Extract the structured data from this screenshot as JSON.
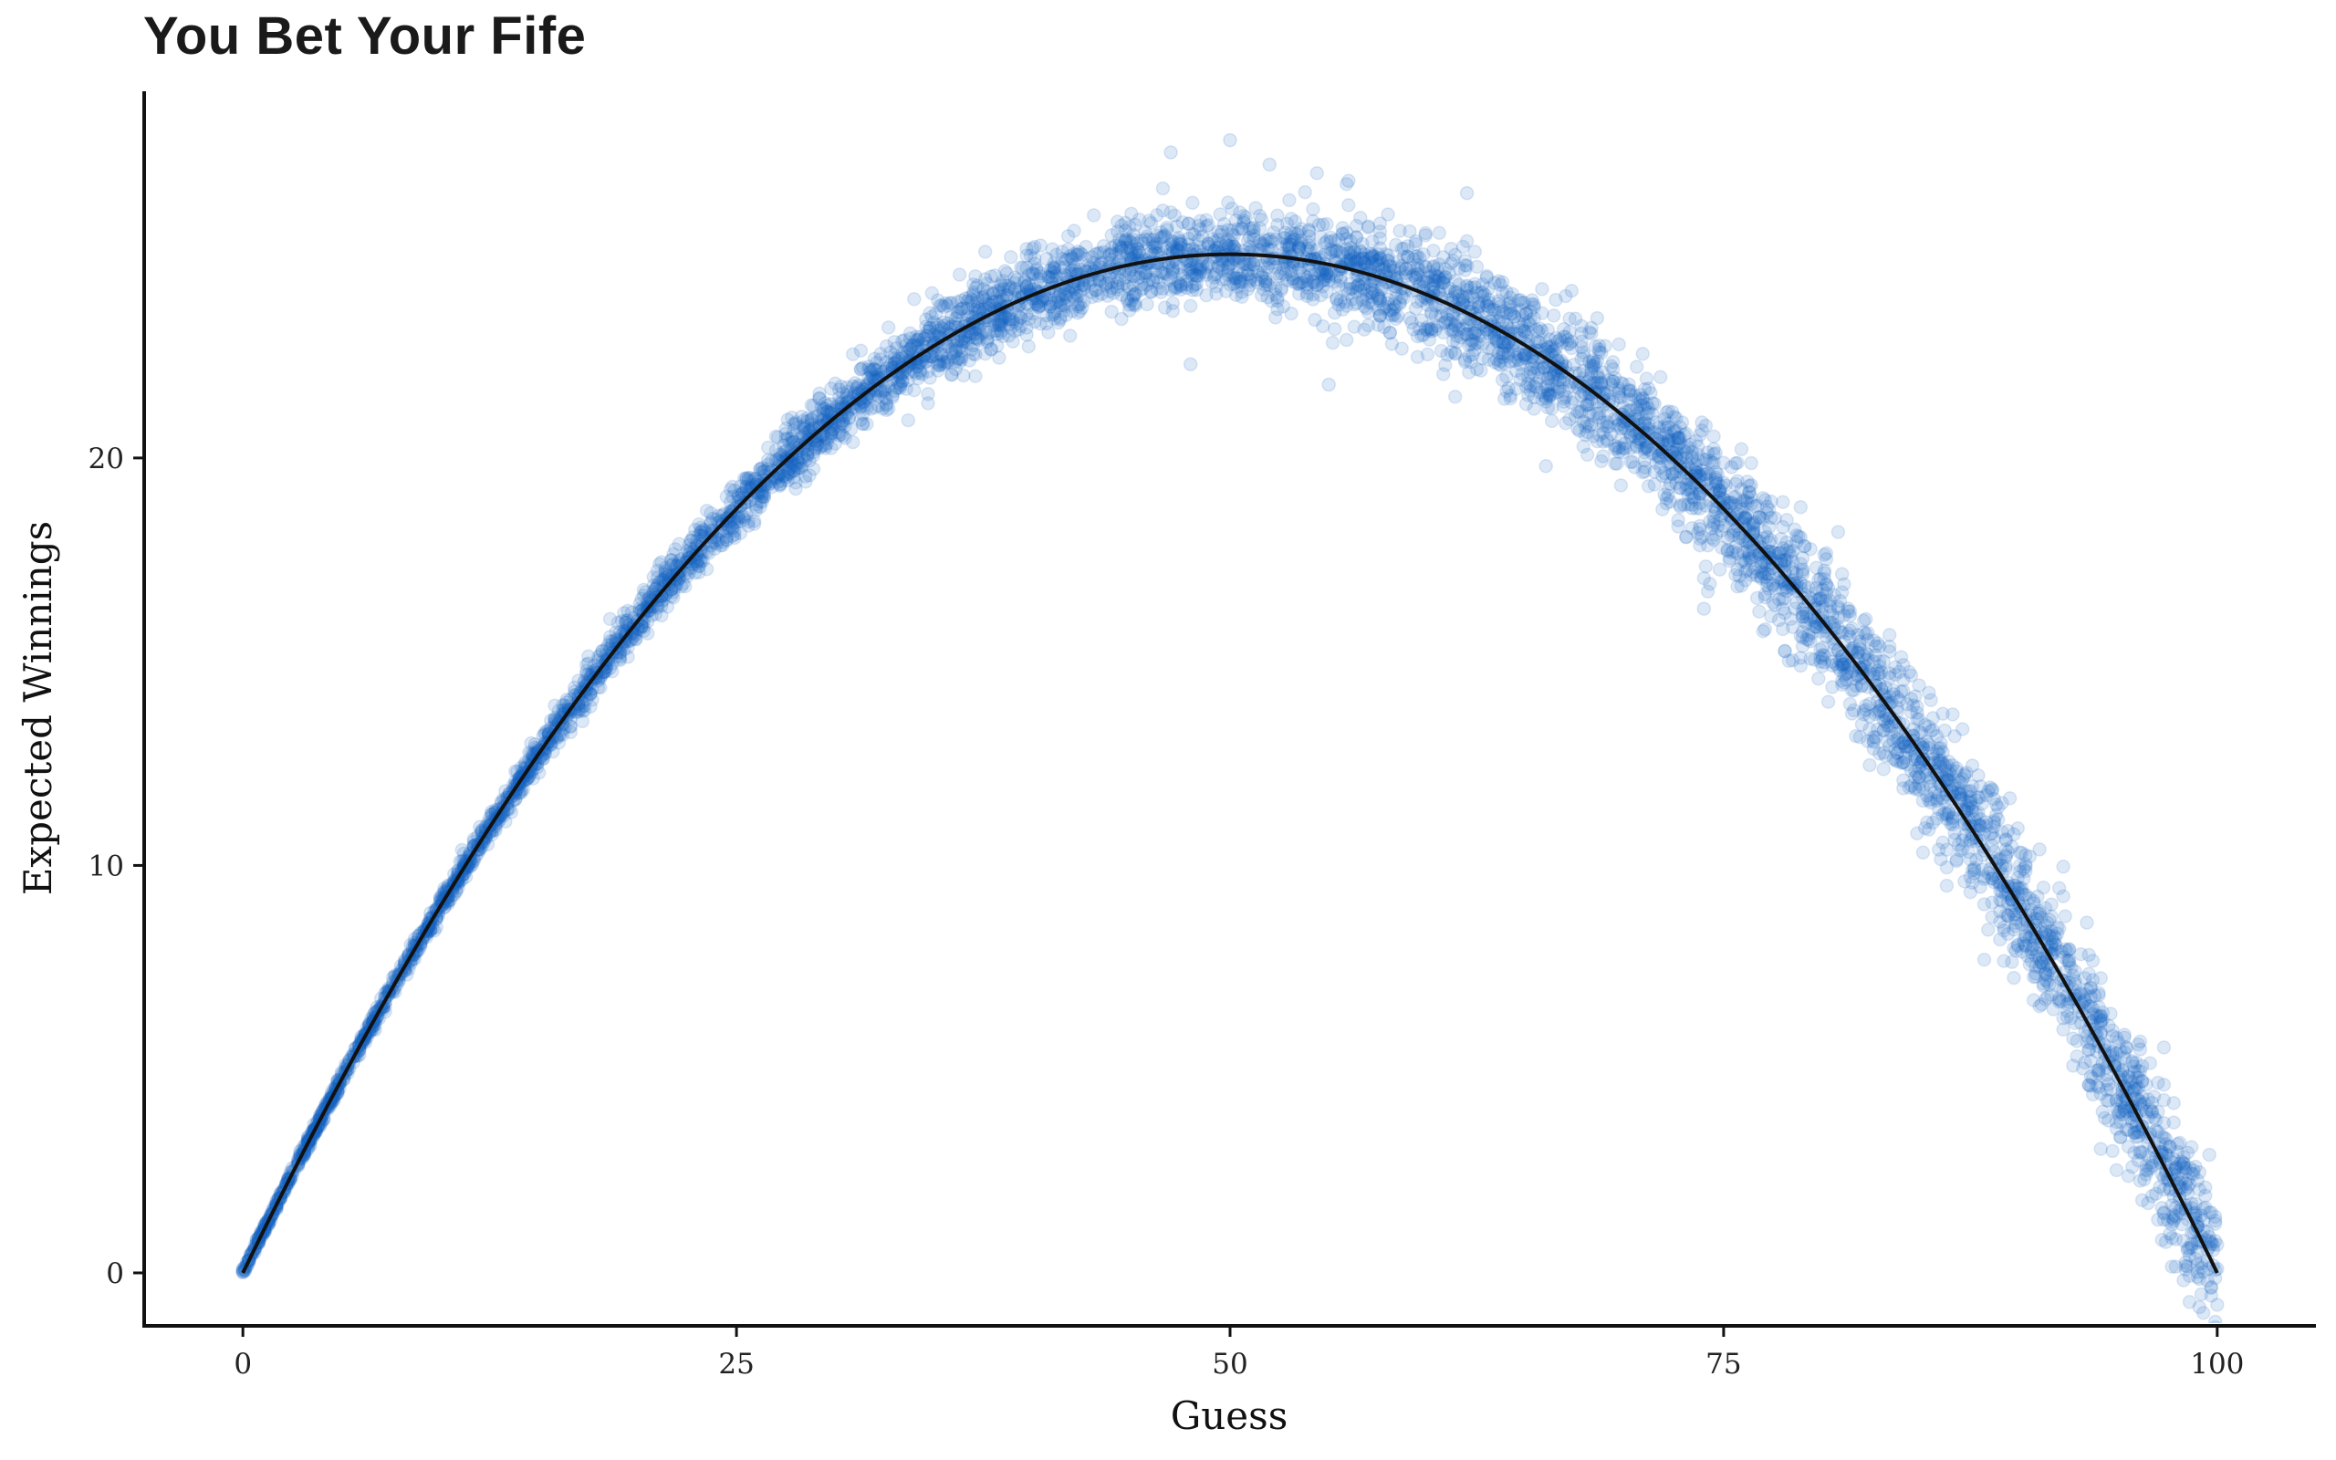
{
  "chart_data": {
    "type": "scatter",
    "title": "You Bet Your Fife",
    "xlabel": "Guess",
    "ylabel": "Expected Winnings",
    "xlim": [
      -5,
      105
    ],
    "ylim": [
      -1.3,
      29.0
    ],
    "x_ticks": [
      0,
      25,
      50,
      75,
      100
    ],
    "x_tick_labels": [
      "0",
      "25",
      "50",
      "75",
      "100"
    ],
    "y_ticks": [
      0,
      10,
      20
    ],
    "y_tick_labels": [
      "0",
      "10",
      "20"
    ],
    "grid": false,
    "legend": "none",
    "series": [
      {
        "kind": "scatter",
        "color": "#1565c0",
        "opacity": 0.15,
        "approx_count": 6000,
        "samples": [
          [
            0,
            0.1
          ],
          [
            2,
            2.0
          ],
          [
            5,
            4.8
          ],
          [
            10,
            9.0
          ],
          [
            15,
            12.8
          ],
          [
            20,
            16.0
          ],
          [
            25,
            18.8
          ],
          [
            30,
            21.0
          ],
          [
            35,
            22.8
          ],
          [
            40,
            24.0
          ],
          [
            45,
            24.8
          ],
          [
            50,
            25.0
          ],
          [
            55,
            24.6
          ],
          [
            60,
            24.0
          ],
          [
            65,
            22.8
          ],
          [
            70,
            21.0
          ],
          [
            75,
            18.8
          ],
          [
            80,
            16.0
          ],
          [
            85,
            12.8
          ],
          [
            90,
            9.0
          ],
          [
            95,
            4.8
          ],
          [
            100,
            0.1
          ],
          [
            47,
            27.5
          ],
          [
            50,
            27.8
          ],
          [
            52,
            27.2
          ],
          [
            56,
            26.8
          ],
          [
            62,
            26.5
          ],
          [
            48,
            22.3
          ],
          [
            55,
            21.8
          ],
          [
            66,
            19.8
          ],
          [
            74,
            16.3
          ],
          [
            78,
            15.8
          ]
        ]
      },
      {
        "kind": "line",
        "color": "#111111",
        "x": [
          0,
          5,
          10,
          15,
          20,
          25,
          30,
          35,
          40,
          45,
          50,
          55,
          60,
          65,
          70,
          75,
          80,
          85,
          90,
          95,
          100
        ],
        "y": [
          0,
          4.75,
          9,
          12.75,
          16,
          18.75,
          21,
          22.75,
          24,
          24.75,
          25,
          24.75,
          24,
          22.75,
          21,
          18.75,
          16,
          12.75,
          9,
          4.75,
          0
        ]
      }
    ]
  }
}
